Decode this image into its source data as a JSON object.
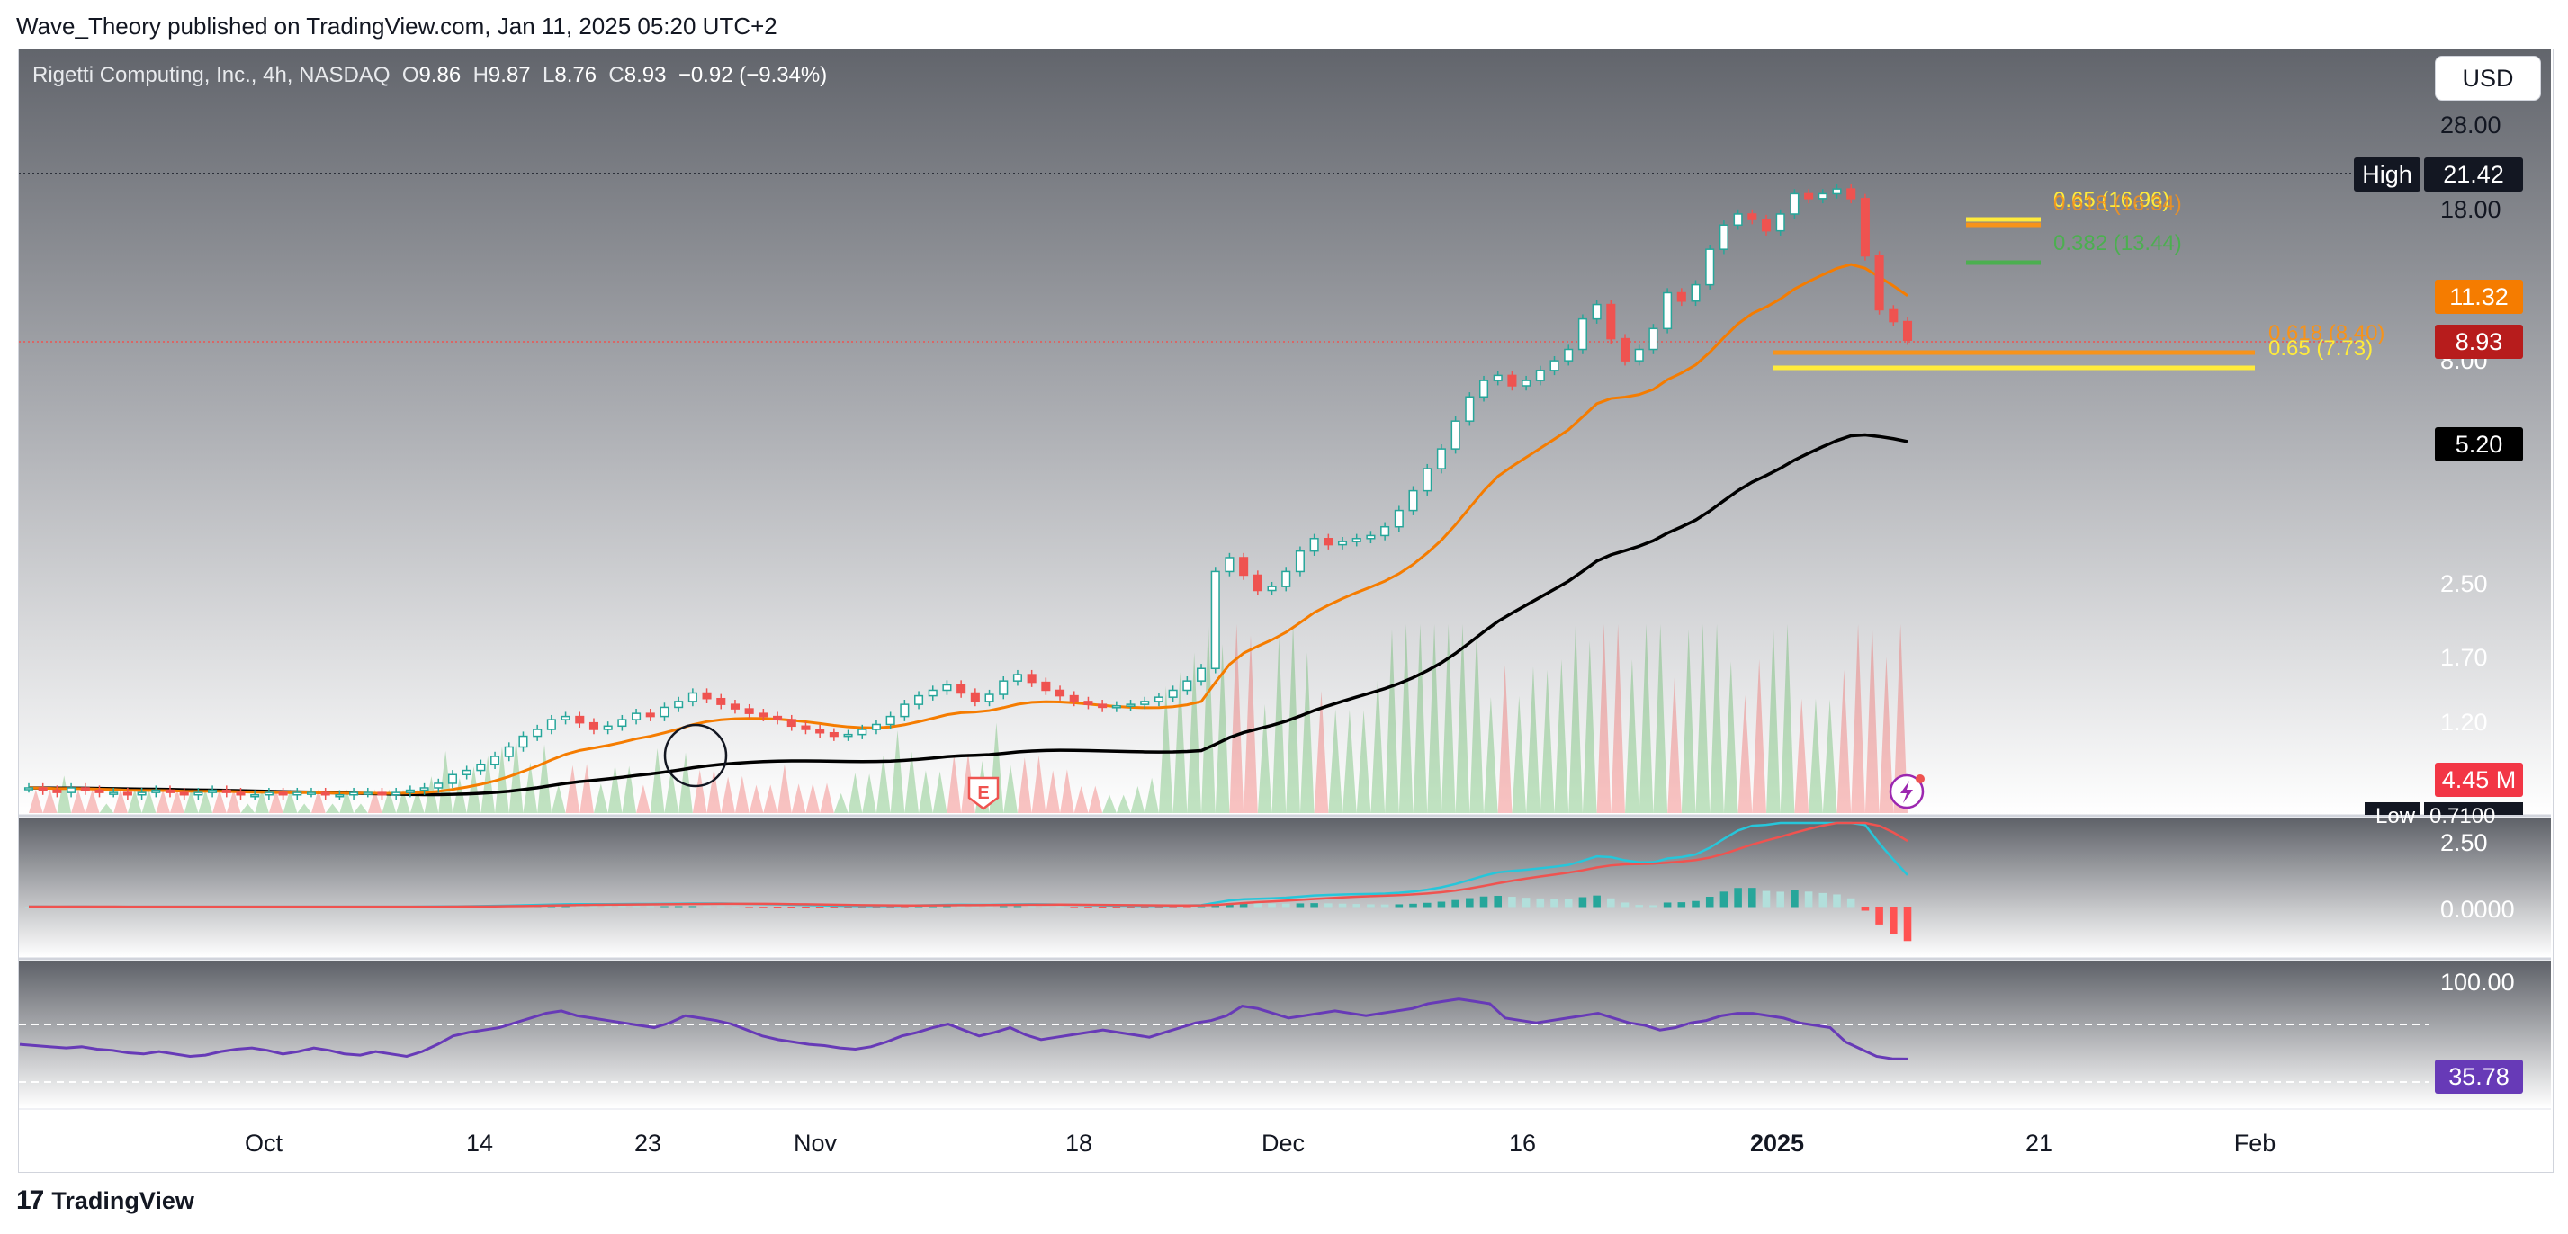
{
  "header": {
    "publisher": "Wave_Theory published on TradingView.com, Jan 11, 2025 05:20 UTC+2"
  },
  "legend": {
    "symbol": "Rigetti Computing, Inc., 4h, NASDAQ",
    "o_label": "O",
    "o": "9.86",
    "h_label": "H",
    "h": "9.87",
    "l_label": "L",
    "l": "8.76",
    "c_label": "C",
    "c": "8.93",
    "change": "−0.92 (−9.34%)"
  },
  "currency_button": "USD",
  "footer": {
    "brand": "TradingView",
    "logo": "17"
  },
  "colors": {
    "up": "#26a69a",
    "up_body": "#ffffff",
    "down": "#ef5350",
    "ema_short": "#f57c00",
    "ema_long": "#000000",
    "macd_line": "#26c6da",
    "signal_line": "#ef5350",
    "rsi": "#673ab7",
    "fib_618": "#f7931a",
    "fib_65": "#ffeb3b",
    "fib_382": "#4caf50"
  },
  "chart_data": {
    "type": "candlestick",
    "price_scale": "log",
    "x_ticks": [
      "Oct",
      "14",
      "23",
      "Nov",
      "18",
      "Dec",
      "16",
      "2025",
      "21",
      "Feb"
    ],
    "y_ticks": [
      "28.00",
      "18.00",
      "8.00",
      "2.50",
      "1.70",
      "1.20"
    ],
    "price_labels": [
      {
        "name": "High",
        "value": "21.42"
      },
      {
        "name": "ema-short",
        "value": "11.32"
      },
      {
        "name": "last",
        "value": "8.93"
      },
      {
        "name": "ema-long",
        "value": "5.20"
      },
      {
        "name": "volume",
        "value": "4.45 M"
      },
      {
        "name": "Low",
        "value": "0.7100"
      }
    ],
    "fib_levels": [
      {
        "label": "0.65 (16.96)",
        "value": 16.96
      },
      {
        "label": "0.618 (16.34)",
        "value": 16.34
      },
      {
        "label": "0.382 (13.44)",
        "value": 13.44
      },
      {
        "label": "0.618 (8.40)",
        "value": 8.4
      },
      {
        "label": "0.65 (7.73)",
        "value": 7.73
      }
    ],
    "earnings_marker": "E",
    "candles_close": [
      0.82,
      0.81,
      0.8,
      0.82,
      0.81,
      0.8,
      0.8,
      0.79,
      0.8,
      0.81,
      0.8,
      0.79,
      0.8,
      0.81,
      0.8,
      0.79,
      0.79,
      0.8,
      0.79,
      0.8,
      0.8,
      0.79,
      0.79,
      0.8,
      0.8,
      0.79,
      0.8,
      0.81,
      0.82,
      0.84,
      0.88,
      0.9,
      0.93,
      0.97,
      1.02,
      1.08,
      1.12,
      1.18,
      1.2,
      1.16,
      1.12,
      1.14,
      1.18,
      1.22,
      1.2,
      1.26,
      1.3,
      1.36,
      1.32,
      1.28,
      1.25,
      1.22,
      1.2,
      1.18,
      1.14,
      1.12,
      1.1,
      1.08,
      1.09,
      1.12,
      1.15,
      1.2,
      1.28,
      1.34,
      1.38,
      1.42,
      1.36,
      1.3,
      1.35,
      1.45,
      1.5,
      1.44,
      1.38,
      1.34,
      1.3,
      1.28,
      1.26,
      1.27,
      1.28,
      1.3,
      1.33,
      1.38,
      1.45,
      1.55,
      2.6,
      2.8,
      2.55,
      2.35,
      2.4,
      2.6,
      2.9,
      3.1,
      3.0,
      3.05,
      3.1,
      3.15,
      3.3,
      3.6,
      4.0,
      4.5,
      5.0,
      5.8,
      6.6,
      7.2,
      7.4,
      7.0,
      7.2,
      7.6,
      8.0,
      8.5,
      10.0,
      10.8,
      9.0,
      8.0,
      8.5,
      9.5,
      11.5,
      11.0,
      12.0,
      14.5,
      16.5,
      17.5,
      17.0,
      16.0,
      17.5,
      19.5,
      19.0,
      19.5,
      20.0,
      19.0,
      14.0,
      10.5,
      9.86,
      8.93
    ],
    "ema_short_value": 11.32,
    "ema_long_value": 5.2,
    "volume_last": "4.45 M",
    "macd": {
      "ticks": [
        "2.50",
        "0.0000"
      ]
    },
    "rsi": {
      "ticks": [
        "100.00"
      ],
      "last": "35.78",
      "upper": 70,
      "lower": 30,
      "values": [
        48,
        47,
        46,
        45,
        46,
        44,
        43,
        41,
        40,
        42,
        40,
        38,
        39,
        42,
        44,
        45,
        43,
        40,
        42,
        45,
        43,
        40,
        39,
        42,
        40,
        38,
        42,
        48,
        55,
        58,
        60,
        62,
        66,
        70,
        74,
        76,
        72,
        70,
        68,
        66,
        64,
        62,
        66,
        72,
        70,
        68,
        65,
        60,
        55,
        52,
        50,
        48,
        47,
        45,
        44,
        46,
        50,
        55,
        58,
        62,
        65,
        60,
        55,
        58,
        62,
        56,
        52,
        54,
        56,
        58,
        60,
        58,
        56,
        54,
        58,
        62,
        66,
        68,
        72,
        80,
        78,
        74,
        70,
        72,
        74,
        76,
        74,
        72,
        74,
        76,
        78,
        82,
        84,
        86,
        84,
        82,
        70,
        68,
        66,
        68,
        70,
        72,
        74,
        70,
        66,
        64,
        60,
        62,
        66,
        68,
        72,
        74,
        74,
        72,
        70,
        66,
        64,
        62,
        50,
        44,
        38,
        36,
        35.78
      ]
    }
  }
}
